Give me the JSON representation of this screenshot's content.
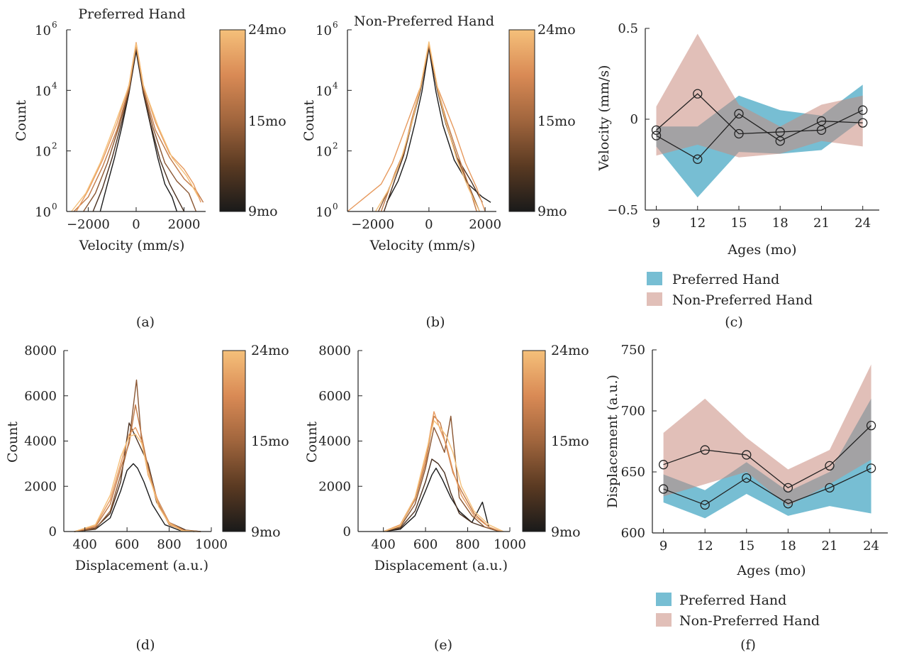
{
  "figure": {
    "panel_labels": [
      "(a)",
      "(b)",
      "(c)",
      "(d)",
      "(e)",
      "(f)"
    ],
    "colorbar": {
      "labels": [
        "24mo",
        "15mo",
        "9mo"
      ],
      "stops": [
        "#1a1a1a",
        "#5a3a22",
        "#a0653d",
        "#d98a55",
        "#f5c07a"
      ]
    }
  },
  "chart_data": [
    {
      "id": "a",
      "type": "line",
      "title": "Preferred Hand",
      "xlabel": "Velocity (mm/s)",
      "ylabel": "Count",
      "yscale": "log",
      "xlim": [
        -2900,
        2900
      ],
      "ylim": [
        1,
        1000000
      ],
      "xticks": [
        -2000,
        0,
        2000
      ],
      "xtick_labels": [
        "−2000",
        "0",
        "2000"
      ],
      "yticks": [
        1,
        100,
        10000,
        1000000
      ],
      "ytick_labels": [
        [
          "10",
          "0"
        ],
        [
          "10",
          "2"
        ],
        [
          "10",
          "4"
        ],
        [
          "10",
          "6"
        ]
      ],
      "colorbar": true,
      "series": [
        {
          "color": "#1a1a1a",
          "x": [
            -1500,
            -1200,
            -900,
            -600,
            -300,
            0,
            300,
            600,
            900,
            1200,
            1500,
            1700
          ],
          "y": [
            1,
            8,
            60,
            600,
            8000,
            200000,
            8000,
            700,
            60,
            8,
            3,
            1
          ]
        },
        {
          "color": "#4a3020",
          "x": [
            -1800,
            -1400,
            -1000,
            -600,
            -300,
            0,
            300,
            600,
            1000,
            1400,
            1800,
            2000
          ],
          "y": [
            1,
            6,
            60,
            900,
            9000,
            250000,
            9000,
            800,
            50,
            8,
            2,
            1
          ]
        },
        {
          "color": "#8a5632",
          "x": [
            -2200,
            -1700,
            -1200,
            -700,
            -300,
            0,
            300,
            700,
            1200,
            1700,
            2200,
            2500
          ],
          "y": [
            1,
            4,
            40,
            700,
            10000,
            300000,
            10000,
            600,
            40,
            10,
            4,
            1
          ]
        },
        {
          "color": "#c27a48",
          "x": [
            -2600,
            -2000,
            -1400,
            -800,
            -300,
            0,
            300,
            800,
            1400,
            2000,
            2500,
            2800
          ],
          "y": [
            1,
            3,
            30,
            500,
            12000,
            300000,
            12000,
            500,
            60,
            12,
            5,
            2
          ]
        },
        {
          "color": "#e79a5e",
          "x": [
            -2500,
            -2000,
            -1400,
            -800,
            -300,
            0,
            300,
            800,
            1400,
            2000,
            2400,
            2700
          ],
          "y": [
            1,
            5,
            50,
            800,
            15000,
            380000,
            15000,
            900,
            80,
            25,
            8,
            2
          ]
        },
        {
          "color": "#f5c07a",
          "x": [
            -2700,
            -2100,
            -1500,
            -900,
            -300,
            0,
            300,
            900,
            1500,
            2100,
            2600
          ],
          "y": [
            1,
            4,
            40,
            700,
            14000,
            350000,
            14000,
            700,
            60,
            15,
            3
          ]
        }
      ]
    },
    {
      "id": "b",
      "type": "line",
      "title": "Non-Preferred Hand",
      "xlabel": "Velocity (mm/s)",
      "ylabel": "Count",
      "yscale": "log",
      "xlim": [
        -2900,
        2400
      ],
      "ylim": [
        1,
        1000000
      ],
      "xticks": [
        -2000,
        0,
        2000
      ],
      "xtick_labels": [
        "−2000",
        "0",
        "2000"
      ],
      "yticks": [
        1,
        100,
        10000,
        1000000
      ],
      "ytick_labels": [
        [
          "10",
          "0"
        ],
        [
          "10",
          "2"
        ],
        [
          "10",
          "4"
        ],
        [
          "10",
          "6"
        ]
      ],
      "colorbar": true,
      "series": [
        {
          "color": "#1a1a1a",
          "x": [
            -1500,
            -1100,
            -800,
            -500,
            -250,
            0,
            250,
            500,
            900,
            1400,
            1900,
            2200
          ],
          "y": [
            2,
            10,
            60,
            800,
            9000,
            250000,
            9000,
            700,
            50,
            8,
            3,
            2
          ]
        },
        {
          "color": "#4a3020",
          "x": [
            -1600,
            -1200,
            -900,
            -600,
            -300,
            0,
            300,
            600,
            1000,
            1500,
            1900
          ],
          "y": [
            1,
            12,
            70,
            900,
            10000,
            280000,
            10000,
            800,
            60,
            10,
            2
          ]
        },
        {
          "color": "#8a5632",
          "x": [
            -1800,
            -1300,
            -900,
            -600,
            -300,
            0,
            300,
            600,
            1000,
            1400,
            1800
          ],
          "y": [
            1,
            10,
            80,
            1000,
            11000,
            320000,
            11000,
            900,
            60,
            8,
            1
          ]
        },
        {
          "color": "#c27a48",
          "x": [
            -1700,
            -1200,
            -900,
            -600,
            -300,
            0,
            300,
            600,
            1000,
            1400,
            1700
          ],
          "y": [
            1,
            20,
            90,
            1200,
            12000,
            330000,
            12000,
            1200,
            90,
            8,
            1
          ]
        },
        {
          "color": "#e79a5e",
          "x": [
            -2900,
            -1700,
            -1300,
            -900,
            -300,
            0,
            300,
            900,
            1300,
            1700,
            2000
          ],
          "y": [
            1,
            8,
            40,
            400,
            13000,
            360000,
            13000,
            500,
            40,
            6,
            1
          ]
        },
        {
          "color": "#f5c07a",
          "x": [
            -1900,
            -1400,
            -1000,
            -600,
            -300,
            0,
            300,
            600,
            1000,
            1400,
            1800
          ],
          "y": [
            1,
            6,
            50,
            900,
            13000,
            400000,
            13000,
            900,
            50,
            6,
            1
          ]
        }
      ]
    },
    {
      "id": "c",
      "type": "line",
      "xlabel": "Ages (mo)",
      "ylabel": "Velocity (mm/s)",
      "xlim": [
        8.2,
        25.2
      ],
      "ylim": [
        -0.5,
        0.5
      ],
      "xticks": [
        9,
        12,
        15,
        18,
        21,
        24
      ],
      "xtick_labels": [
        "9",
        "12",
        "15",
        "18",
        "21",
        "24"
      ],
      "yticks": [
        -0.5,
        0,
        0.5
      ],
      "ytick_labels": [
        "−0.5",
        "0",
        "0.5"
      ],
      "x": [
        9,
        12,
        15,
        18,
        21,
        24
      ],
      "bands": [
        {
          "name": "Preferred Hand",
          "color": "#4aa8c4",
          "upper": [
            -0.04,
            -0.04,
            0.13,
            0.05,
            0.02,
            0.19
          ],
          "lower": [
            -0.15,
            -0.43,
            -0.18,
            -0.19,
            -0.17,
            0.0
          ]
        },
        {
          "name": "Non-Preferred Hand",
          "color": "#c98a7e",
          "upper": [
            0.07,
            0.47,
            0.08,
            -0.04,
            0.08,
            0.13
          ],
          "lower": [
            -0.2,
            -0.14,
            -0.21,
            -0.19,
            -0.12,
            -0.15
          ]
        }
      ],
      "series": [
        {
          "values": [
            -0.09,
            -0.22,
            0.03,
            -0.12,
            -0.01,
            -0.02
          ]
        },
        {
          "values": [
            -0.06,
            0.14,
            -0.08,
            -0.07,
            -0.06,
            0.05
          ]
        }
      ],
      "legend": {
        "position": "below",
        "labels": [
          "Preferred Hand",
          "Non-Preferred Hand"
        ]
      }
    },
    {
      "id": "d",
      "type": "line",
      "xlabel": "Displacement (a.u.)",
      "ylabel": "Count",
      "xlim": [
        300,
        1000
      ],
      "ylim": [
        0,
        8000
      ],
      "xticks": [
        400,
        600,
        800,
        1000
      ],
      "xtick_labels": [
        "400",
        "600",
        "800",
        "1000"
      ],
      "yticks": [
        0,
        2000,
        4000,
        6000,
        8000
      ],
      "ytick_labels": [
        "0",
        "2000",
        "4000",
        "6000",
        "8000"
      ],
      "colorbar": true,
      "series": [
        {
          "color": "#1a1a1a",
          "x": [
            350,
            450,
            520,
            570,
            600,
            630,
            650,
            680,
            720,
            780,
            850,
            920
          ],
          "y": [
            0,
            100,
            600,
            1800,
            2700,
            3000,
            2800,
            2200,
            1200,
            300,
            50,
            0
          ]
        },
        {
          "color": "#4a3020",
          "x": [
            350,
            450,
            520,
            570,
            610,
            640,
            670,
            700,
            740,
            800,
            880,
            950
          ],
          "y": [
            0,
            150,
            800,
            2200,
            4800,
            4200,
            3600,
            3000,
            1500,
            400,
            60,
            0
          ]
        },
        {
          "color": "#8a5632",
          "x": [
            350,
            450,
            520,
            570,
            610,
            645,
            670,
            700,
            740,
            800,
            870,
            940
          ],
          "y": [
            0,
            120,
            900,
            2500,
            4000,
            6700,
            3900,
            2900,
            1300,
            350,
            60,
            0
          ]
        },
        {
          "color": "#c27a48",
          "x": [
            350,
            450,
            520,
            570,
            610,
            640,
            670,
            700,
            750,
            800,
            870,
            950
          ],
          "y": [
            0,
            200,
            1200,
            2800,
            3900,
            5600,
            4200,
            2800,
            1200,
            300,
            40,
            0
          ]
        },
        {
          "color": "#e79a5e",
          "x": [
            350,
            450,
            520,
            570,
            610,
            640,
            670,
            700,
            750,
            800,
            870,
            940
          ],
          "y": [
            0,
            250,
            1400,
            3000,
            4300,
            4600,
            4000,
            2500,
            1300,
            400,
            50,
            0
          ]
        },
        {
          "color": "#f5c07a",
          "x": [
            350,
            450,
            520,
            570,
            610,
            640,
            670,
            700,
            750,
            800,
            860,
            930
          ],
          "y": [
            0,
            300,
            1600,
            3300,
            4200,
            4300,
            3900,
            2600,
            1100,
            350,
            40,
            0
          ]
        }
      ]
    },
    {
      "id": "e",
      "type": "line",
      "xlabel": "Displacement (a.u.)",
      "ylabel": "Count",
      "xlim": [
        280,
        1000
      ],
      "ylim": [
        0,
        8000
      ],
      "xticks": [
        400,
        600,
        800,
        1000
      ],
      "xtick_labels": [
        "400",
        "600",
        "800",
        "1000"
      ],
      "yticks": [
        0,
        2000,
        4000,
        6000,
        8000
      ],
      "ytick_labels": [
        "0",
        "2000",
        "4000",
        "6000",
        "8000"
      ],
      "colorbar": true,
      "series": [
        {
          "color": "#1a1a1a",
          "x": [
            400,
            480,
            550,
            600,
            630,
            650,
            680,
            720,
            760,
            820,
            870,
            900,
            950
          ],
          "y": [
            0,
            100,
            700,
            1800,
            2500,
            2800,
            2300,
            1500,
            900,
            400,
            1300,
            200,
            0
          ]
        },
        {
          "color": "#4a3020",
          "x": [
            400,
            480,
            550,
            600,
            630,
            660,
            690,
            720,
            760,
            820,
            880,
            950
          ],
          "y": [
            0,
            150,
            900,
            2200,
            3200,
            3000,
            2600,
            1700,
            800,
            400,
            200,
            0
          ]
        },
        {
          "color": "#8a5632",
          "x": [
            400,
            480,
            550,
            600,
            640,
            660,
            690,
            720,
            760,
            820,
            880,
            950
          ],
          "y": [
            0,
            200,
            1200,
            2800,
            4600,
            4200,
            3500,
            5100,
            1500,
            700,
            200,
            0
          ]
        },
        {
          "color": "#c27a48",
          "x": [
            400,
            480,
            550,
            600,
            640,
            670,
            700,
            730,
            770,
            830,
            900,
            960
          ],
          "y": [
            0,
            250,
            1400,
            3000,
            5100,
            4800,
            3700,
            2600,
            1800,
            800,
            200,
            0
          ]
        },
        {
          "color": "#e79a5e",
          "x": [
            400,
            480,
            550,
            600,
            640,
            670,
            700,
            730,
            770,
            830,
            900,
            960
          ],
          "y": [
            0,
            300,
            1500,
            3200,
            5300,
            4500,
            3800,
            2700,
            1600,
            700,
            200,
            0
          ]
        },
        {
          "color": "#f5c07a",
          "x": [
            400,
            480,
            550,
            600,
            640,
            670,
            700,
            730,
            770,
            830,
            900,
            970
          ],
          "y": [
            0,
            250,
            1500,
            3400,
            4900,
            4600,
            4200,
            3500,
            2000,
            900,
            300,
            0
          ]
        }
      ]
    },
    {
      "id": "f",
      "type": "line",
      "xlabel": "Ages (mo)",
      "ylabel": "Displacement (a.u.)",
      "xlim": [
        8.2,
        25.2
      ],
      "ylim": [
        600,
        750
      ],
      "xticks": [
        9,
        12,
        15,
        18,
        21,
        24
      ],
      "xtick_labels": [
        "9",
        "12",
        "15",
        "18",
        "21",
        "24"
      ],
      "yticks": [
        600,
        650,
        700,
        750
      ],
      "ytick_labels": [
        "600",
        "650",
        "700",
        "750"
      ],
      "x": [
        9,
        12,
        15,
        18,
        21,
        24
      ],
      "bands": [
        {
          "name": "Preferred Hand",
          "color": "#4aa8c4",
          "upper": [
            648,
            635,
            658,
            634,
            650,
            710
          ],
          "lower": [
            625,
            612,
            632,
            614,
            622,
            616
          ]
        },
        {
          "name": "Non-Preferred Hand",
          "color": "#c98a7e",
          "upper": [
            682,
            710,
            678,
            652,
            668,
            738
          ],
          "lower": [
            630,
            640,
            650,
            622,
            640,
            660
          ]
        }
      ],
      "series": [
        {
          "values": [
            636,
            623,
            645,
            624,
            637,
            653
          ]
        },
        {
          "values": [
            656,
            668,
            664,
            637,
            655,
            688
          ]
        }
      ],
      "legend": {
        "position": "below",
        "labels": [
          "Preferred Hand",
          "Non-Preferred Hand"
        ]
      }
    }
  ]
}
